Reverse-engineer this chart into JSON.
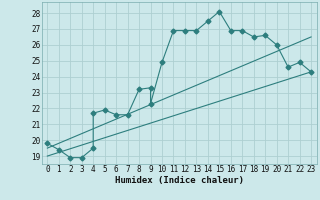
{
  "xlabel": "Humidex (Indice chaleur)",
  "ylabel": "",
  "bg_color": "#cce8ea",
  "grid_color": "#aecfd1",
  "line_color": "#2d7e7e",
  "xlim": [
    -0.5,
    23.5
  ],
  "ylim": [
    18.5,
    28.7
  ],
  "xticks": [
    0,
    1,
    2,
    3,
    4,
    5,
    6,
    7,
    8,
    9,
    10,
    11,
    12,
    13,
    14,
    15,
    16,
    17,
    18,
    19,
    20,
    21,
    22,
    23
  ],
  "yticks": [
    19,
    20,
    21,
    22,
    23,
    24,
    25,
    26,
    27,
    28
  ],
  "main_line_x": [
    0,
    1,
    2,
    3,
    4,
    4,
    5,
    6,
    7,
    8,
    9,
    9,
    10,
    11,
    12,
    13,
    14,
    15,
    16,
    17,
    18,
    19,
    20,
    21,
    22,
    23
  ],
  "main_line_y": [
    19.8,
    19.4,
    18.9,
    18.9,
    19.5,
    21.7,
    21.9,
    21.6,
    21.6,
    23.2,
    23.3,
    22.3,
    24.9,
    26.9,
    26.9,
    26.9,
    27.5,
    28.1,
    26.9,
    26.9,
    26.5,
    26.6,
    26.0,
    24.6,
    24.9,
    24.3
  ],
  "line1_x": [
    0,
    23
  ],
  "line1_y": [
    19.5,
    26.5
  ],
  "line2_x": [
    0,
    23
  ],
  "line2_y": [
    19.0,
    24.3
  ],
  "marker": "D",
  "marker_size": 2.5
}
